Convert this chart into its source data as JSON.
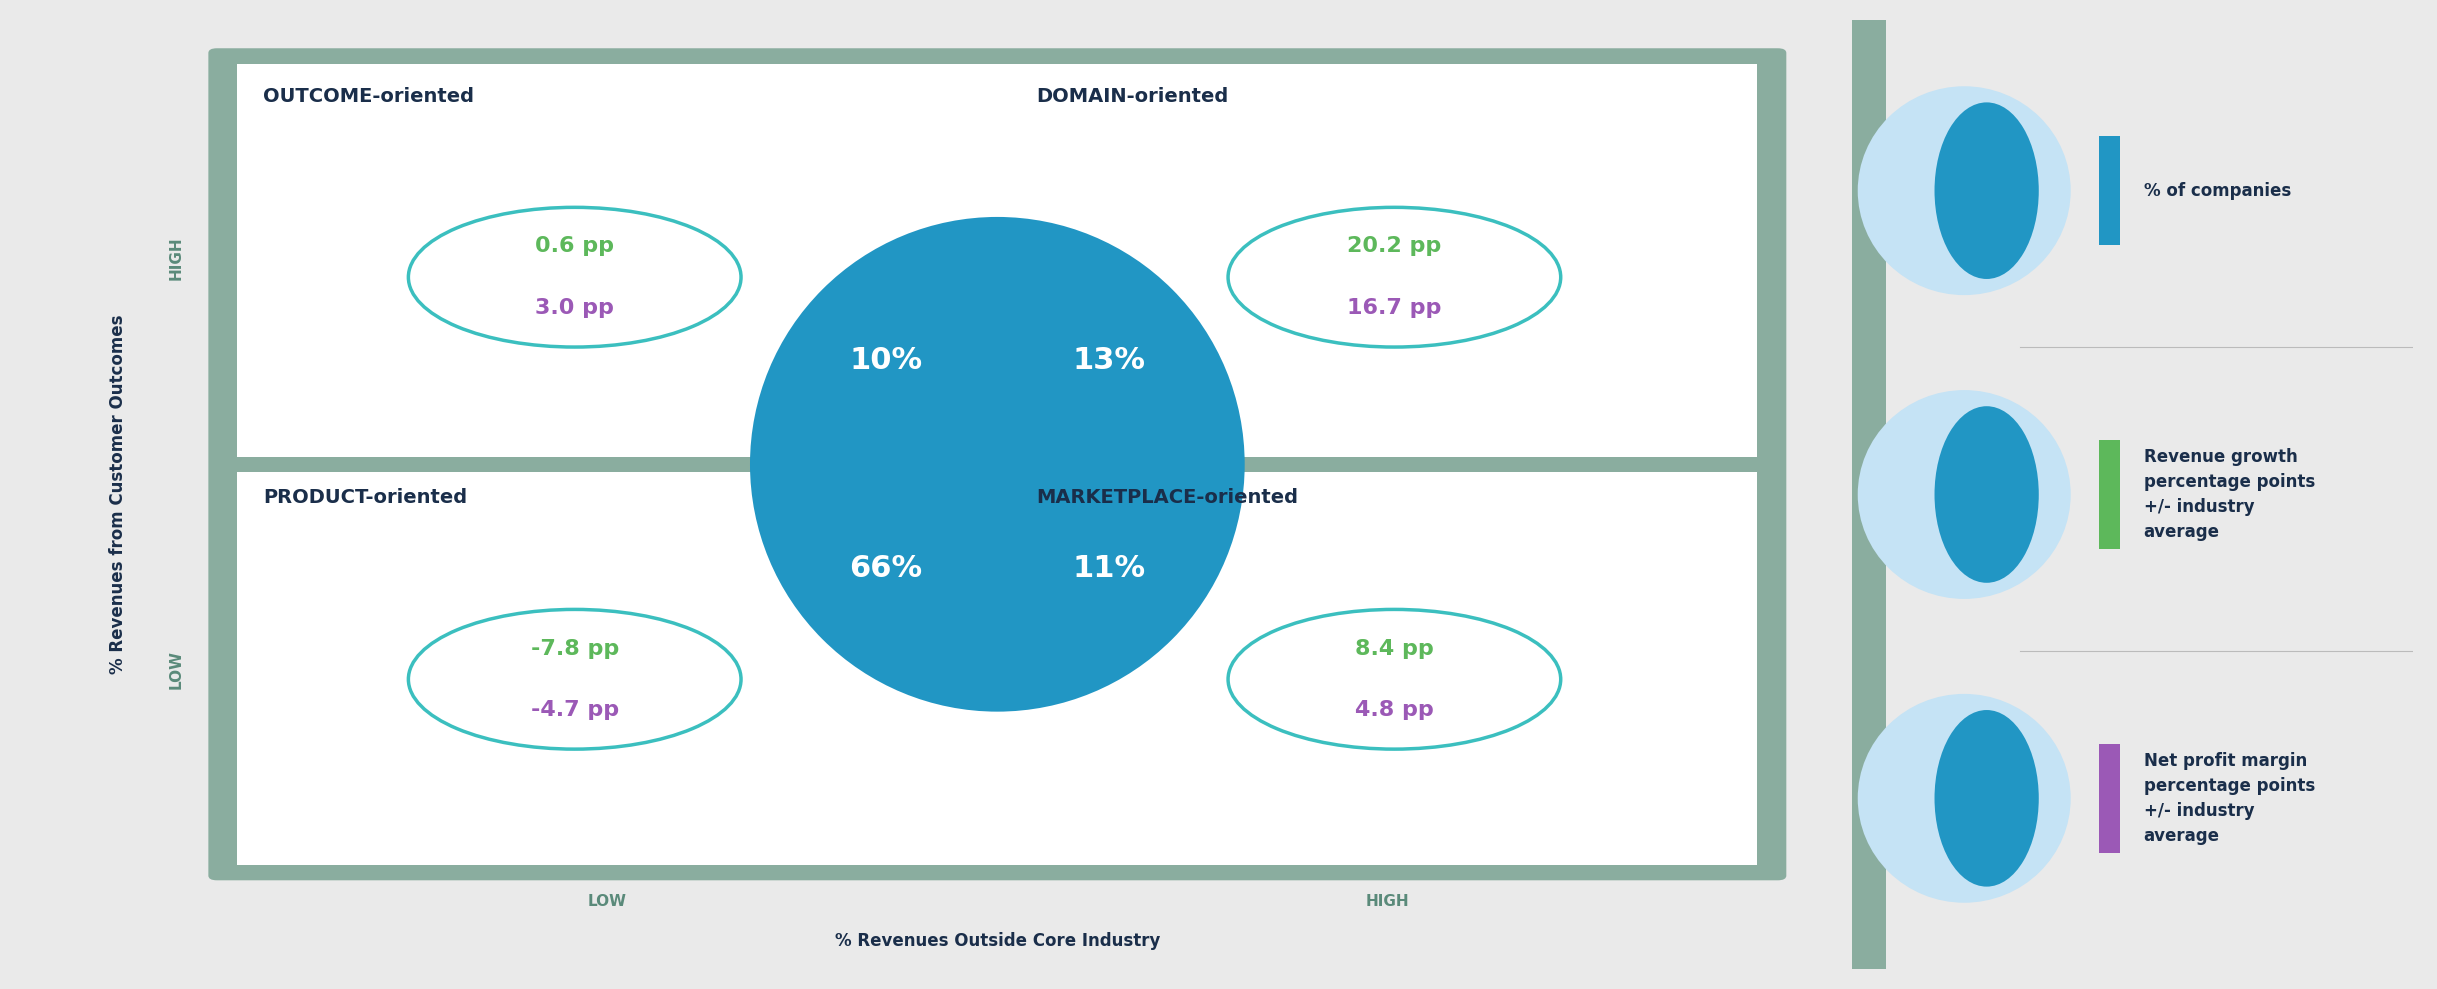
{
  "bg_color": "#eaeaea",
  "outer_border_color": "#8aad9f",
  "inner_bg_color": "#ffffff",
  "circle_color": "#2196c4",
  "circle_text_color": "#ffffff",
  "ellipse_border_color": "#3bbfbf",
  "green_color": "#5db85b",
  "purple_color": "#9b59b6",
  "dark_navy": "#1a2e4a",
  "axis_label_color": "#5a8a7a",
  "legend_bg": "#f2f2f2",
  "teal_strip": "#8aad9f",
  "sep_line_color": "#bbbbbb",
  "oval_bg_color": "#c5e3f5",
  "quadrants": [
    {
      "label": "OUTCOME-oriented",
      "position": "top-left",
      "green_val": "0.6 pp",
      "purple_val": "3.0 pp"
    },
    {
      "label": "DOMAIN-oriented",
      "position": "top-right",
      "green_val": "20.2 pp",
      "purple_val": "16.7 pp"
    },
    {
      "label": "PRODUCT-oriented",
      "position": "bottom-left",
      "green_val": "-7.8 pp",
      "purple_val": "-4.7 pp"
    },
    {
      "label": "MARKETPLACE-oriented",
      "position": "bottom-right",
      "green_val": "8.4 pp",
      "purple_val": "4.8 pp"
    }
  ],
  "pct_labels": [
    {
      "text": "10%",
      "quad": "top-left"
    },
    {
      "text": "13%",
      "quad": "top-right"
    },
    {
      "text": "66%",
      "quad": "bottom-left"
    },
    {
      "text": "11%",
      "quad": "bottom-right"
    }
  ],
  "y_axis_label": "% Revenues from Customer Outcomes",
  "x_axis_label": "% Revenues Outside Core Industry",
  "y_high_label": "HIGH",
  "y_low_label": "LOW",
  "x_low_label": "LOW",
  "x_high_label": "HIGH",
  "legend_items": [
    {
      "bar_color": "#2196c4",
      "text": "% of companies"
    },
    {
      "bar_color": "#5db85b",
      "text": "Revenue growth\npercentage points\n+/- industry\naverage"
    },
    {
      "bar_color": "#9b59b6",
      "text": "Net profit margin\npercentage points\n+/- industry\naverage"
    }
  ]
}
